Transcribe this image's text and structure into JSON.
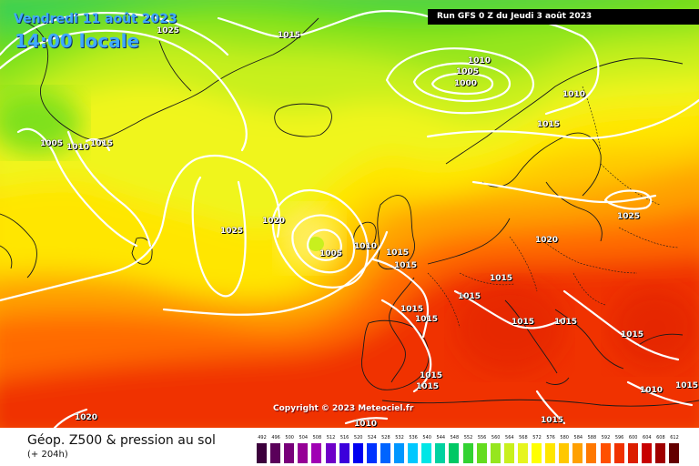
{
  "header": {
    "date": "Vendredi 11 août 2023",
    "time": "14:00 locale",
    "run": "Run GFS 0 Z du Jeudi 3 août 2023"
  },
  "copyright": "Copyright © 2023 Meteociel.fr",
  "footer": {
    "title": "Géop. Z500 & pression au sol",
    "forecast": "(+ 204h)"
  },
  "legend": {
    "values": [
      "492",
      "496",
      "500",
      "504",
      "508",
      "512",
      "516",
      "520",
      "524",
      "528",
      "532",
      "536",
      "540",
      "544",
      "548",
      "552",
      "556",
      "560",
      "564",
      "568",
      "572",
      "576",
      "580",
      "584",
      "588",
      "592",
      "596",
      "600",
      "604",
      "608",
      "612"
    ],
    "colors": [
      "#3c003c",
      "#5a005a",
      "#78007a",
      "#960096",
      "#a000b4",
      "#6e00c8",
      "#3c00dc",
      "#0000f0",
      "#0032ff",
      "#0064ff",
      "#0096ff",
      "#00c8ff",
      "#00e6e6",
      "#00d2a0",
      "#00c864",
      "#32d232",
      "#64dc1e",
      "#96e61e",
      "#c8f01e",
      "#e6f51e",
      "#ffff00",
      "#ffe600",
      "#ffc800",
      "#ffa000",
      "#ff7800",
      "#ff5000",
      "#f03200",
      "#dc1e00",
      "#c80000",
      "#a00000",
      "#640000"
    ]
  },
  "pressure_labels": [
    {
      "text": "1025"
    },
    {
      "text": "1015"
    },
    {
      "text": "1010"
    },
    {
      "text": "1005"
    },
    {
      "text": "1000"
    },
    {
      "text": "1010"
    },
    {
      "text": "1015"
    },
    {
      "text": "1005"
    },
    {
      "text": "1010"
    },
    {
      "text": "1015"
    },
    {
      "text": "1020"
    },
    {
      "text": "1025"
    },
    {
      "text": "1005"
    },
    {
      "text": "1010"
    },
    {
      "text": "1015"
    },
    {
      "text": "1015"
    },
    {
      "text": "1020"
    },
    {
      "text": "1025"
    },
    {
      "text": "1015"
    },
    {
      "text": "1015"
    },
    {
      "text": "1015"
    },
    {
      "text": "1015"
    },
    {
      "text": "1015"
    },
    {
      "text": "1015"
    },
    {
      "text": "1015"
    },
    {
      "text": "1015"
    },
    {
      "text": "1015"
    },
    {
      "text": "1015"
    },
    {
      "text": "1010"
    },
    {
      "text": "1015"
    },
    {
      "text": "1020"
    },
    {
      "text": "1010"
    }
  ]
}
